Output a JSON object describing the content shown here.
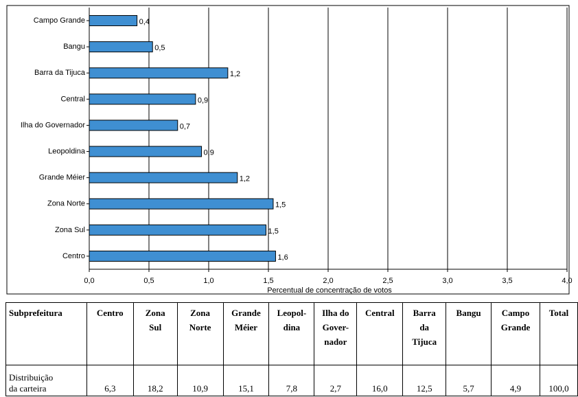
{
  "chart_data": {
    "type": "bar",
    "orientation": "horizontal",
    "x_label": "Percentual de concentração de votos",
    "categories": [
      "Campo Grande",
      "Bangu",
      "Barra da Tijuca",
      "Central",
      "Ilha do Governador",
      "Leopoldina",
      "Grande Méier",
      "Zona Norte",
      "Zona Sul",
      "Centro"
    ],
    "values": [
      0.4,
      0.53,
      1.16,
      0.89,
      0.74,
      0.94,
      1.24,
      1.54,
      1.48,
      1.56
    ],
    "value_labels": [
      "0,4",
      "0,5",
      "1,2",
      "0,9",
      "0,7",
      "0,9",
      "1,2",
      "1,5",
      "1,5",
      "1,6"
    ],
    "color": "#3f8fd2",
    "xlim": [
      0,
      4
    ],
    "xticks": [
      {
        "value": 0,
        "label": "0,0"
      },
      {
        "value": 0.5,
        "label": "0,5"
      },
      {
        "value": 1,
        "label": "1,0"
      },
      {
        "value": 1.5,
        "label": "1,5"
      },
      {
        "value": 2,
        "label": "2,0"
      },
      {
        "value": 2.5,
        "label": "2,5"
      },
      {
        "value": 3,
        "label": "3,0"
      },
      {
        "value": 3.5,
        "label": "3,5"
      },
      {
        "value": 4,
        "label": "4,0"
      }
    ],
    "grid": true
  },
  "table": {
    "header": [
      [
        "Subprefeitura"
      ],
      [
        "Centro"
      ],
      [
        "Zona",
        "Sul"
      ],
      [
        "Zona",
        "Norte"
      ],
      [
        "Grande",
        "Méier"
      ],
      [
        "Leopol-",
        "dina"
      ],
      [
        "Ilha do",
        "Gover-",
        "nador"
      ],
      [
        "Central"
      ],
      [
        "Barra",
        "da",
        "Tijuca"
      ],
      [
        "Bangu"
      ],
      [
        "Campo",
        "Grande"
      ],
      [
        "Total"
      ]
    ],
    "rows": [
      [
        [
          "Distribuição",
          "da carteira"
        ],
        "6,3",
        "18,2",
        "10,9",
        "15,1",
        "7,8",
        "2,7",
        "16,0",
        "12,5",
        "5,7",
        "4,9",
        "100,0"
      ]
    ]
  }
}
